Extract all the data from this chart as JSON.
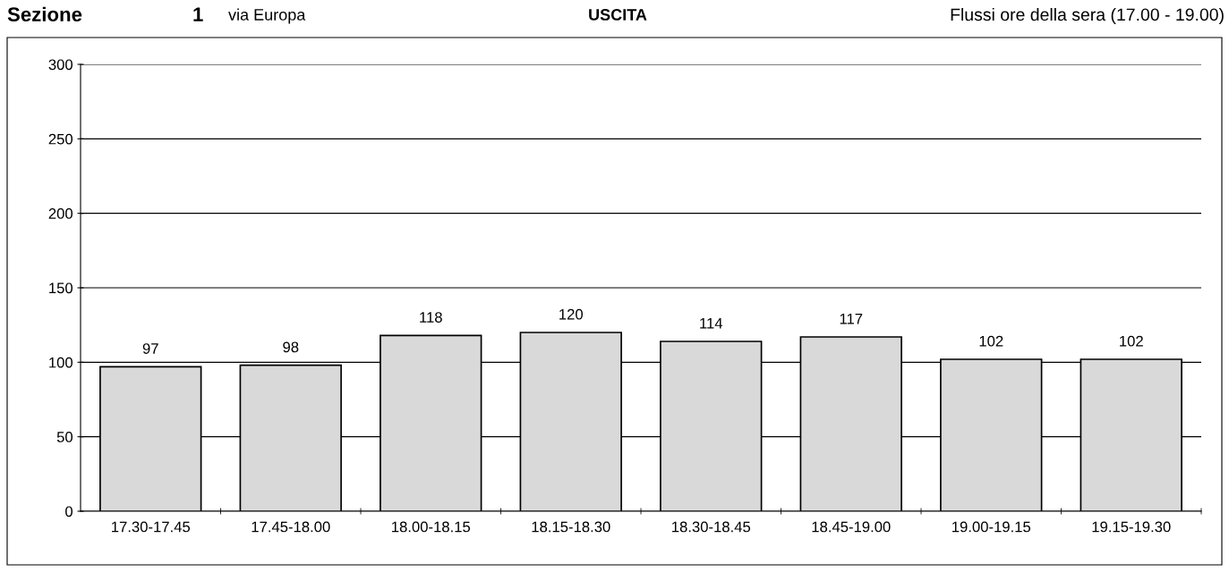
{
  "chart_data": {
    "type": "bar",
    "title": "USCITA",
    "annotations": [
      "Sezione",
      "1",
      "via Europa",
      "Flussi ore della sera (17.00 - 19.00)"
    ],
    "categories": [
      "17.30-17.45",
      "17.45-18.00",
      "18.00-18.15",
      "18.15-18.30",
      "18.30-18.45",
      "18.45-19.00",
      "19.00-19.15",
      "19.15-19.30"
    ],
    "values": [
      97,
      98,
      118,
      120,
      114,
      117,
      102,
      102
    ],
    "color": "#d9d9d9",
    "ylim": [
      0,
      300
    ],
    "yticks": [
      0,
      50,
      100,
      150,
      200,
      250,
      300
    ],
    "grid": "y",
    "data_labels": true
  }
}
